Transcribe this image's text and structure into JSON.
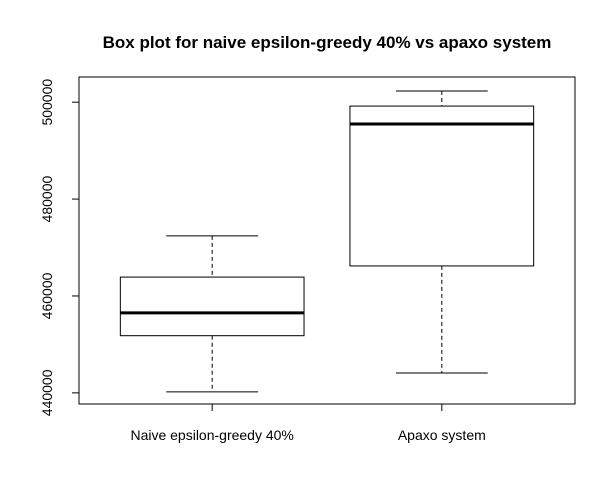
{
  "chart_data": {
    "type": "box",
    "title": "Box plot for naive epsilon-greedy 40% vs apaxo system",
    "categories": [
      "Naive epsilon-greedy 40%",
      "Apaxo system"
    ],
    "boxes": [
      {
        "min": 440200,
        "q1": 451800,
        "median": 456500,
        "q3": 463900,
        "max": 472400
      },
      {
        "min": 444100,
        "q1": 466200,
        "median": 495500,
        "q3": 499200,
        "max": 502300
      }
    ],
    "color": "#ffffff",
    "ylim": [
      437700,
      505200
    ],
    "yticks": [
      440000,
      460000,
      480000,
      500000
    ]
  }
}
